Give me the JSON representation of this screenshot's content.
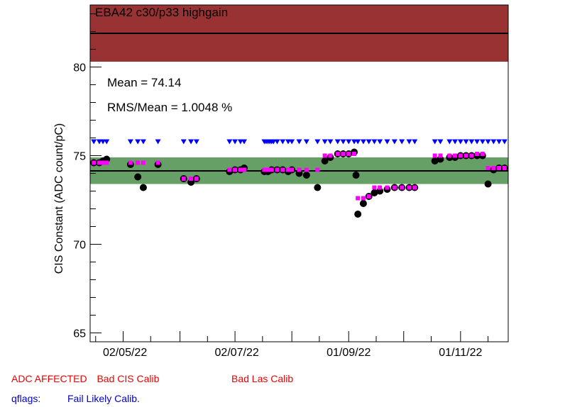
{
  "chart_data": {
    "type": "scatter",
    "title": "EBA42 c30/p33 highgain",
    "ylabel": "CIS Constant (ADC count/pC)",
    "xlabel": "",
    "ylim": [
      64.5,
      83.5
    ],
    "xlim": [
      "2022-04-13",
      "2022-11-27"
    ],
    "ytick_labels": [
      "65",
      "70",
      "75",
      "80"
    ],
    "yticks": [
      65,
      70,
      75,
      80
    ],
    "xtick_labels": [
      "02/05/22",
      "02/07/22",
      "01/09/22",
      "01/11/22"
    ],
    "xticks": [
      "2022-05-02",
      "2022-07-02",
      "2022-09-01",
      "2022-11-01"
    ],
    "stats": {
      "mean_text": "Mean = 74.14",
      "rms_text": "RMS/Mean = 1.0048 %"
    },
    "mean": 74.14,
    "green_band": [
      73.4,
      74.9
    ],
    "red_band": [
      80.3,
      83.5
    ],
    "upper_line": 81.9,
    "grid": false,
    "colors": {
      "red_band": "#993333",
      "green_band": "#66a066",
      "cis_points": "#000000",
      "las_points": "#ff00ff",
      "qflags": "#0000ff"
    },
    "series": [
      {
        "marker": "circle",
        "points": [
          [
            "2022-04-15",
            74.6
          ],
          [
            "2022-04-18",
            74.6
          ],
          [
            "2022-04-20",
            74.7
          ],
          [
            "2022-04-22",
            74.8
          ],
          [
            "2022-05-05",
            74.5
          ],
          [
            "2022-05-09",
            73.8
          ],
          [
            "2022-05-12",
            73.2
          ],
          [
            "2022-05-20",
            74.5
          ],
          [
            "2022-06-03",
            73.7
          ],
          [
            "2022-06-07",
            73.5
          ],
          [
            "2022-06-10",
            73.7
          ],
          [
            "2022-06-28",
            74.1
          ],
          [
            "2022-07-01",
            74.2
          ],
          [
            "2022-07-04",
            74.2
          ],
          [
            "2022-07-06",
            74.3
          ],
          [
            "2022-07-17",
            74.1
          ],
          [
            "2022-07-19",
            74.1
          ],
          [
            "2022-07-21",
            74.2
          ],
          [
            "2022-07-24",
            74.2
          ],
          [
            "2022-07-27",
            74.2
          ],
          [
            "2022-07-30",
            74.1
          ],
          [
            "2022-08-01",
            74.2
          ],
          [
            "2022-08-05",
            74.0
          ],
          [
            "2022-08-09",
            73.9
          ],
          [
            "2022-08-15",
            73.2
          ],
          [
            "2022-08-19",
            74.7
          ],
          [
            "2022-08-22",
            74.9
          ],
          [
            "2022-08-26",
            75.1
          ],
          [
            "2022-08-29",
            75.1
          ],
          [
            "2022-09-01",
            75.1
          ],
          [
            "2022-09-04",
            75.2
          ],
          [
            "2022-09-05",
            73.9
          ],
          [
            "2022-09-06",
            71.7
          ],
          [
            "2022-09-09",
            72.3
          ],
          [
            "2022-09-12",
            72.7
          ],
          [
            "2022-09-15",
            72.9
          ],
          [
            "2022-09-18",
            73.0
          ],
          [
            "2022-09-22",
            73.1
          ],
          [
            "2022-09-26",
            73.2
          ],
          [
            "2022-09-30",
            73.2
          ],
          [
            "2022-10-04",
            73.2
          ],
          [
            "2022-10-07",
            73.2
          ],
          [
            "2022-10-18",
            74.7
          ],
          [
            "2022-10-21",
            74.8
          ],
          [
            "2022-10-26",
            74.9
          ],
          [
            "2022-10-29",
            74.9
          ],
          [
            "2022-11-01",
            75.0
          ],
          [
            "2022-11-04",
            75.0
          ],
          [
            "2022-11-07",
            75.0
          ],
          [
            "2022-11-10",
            75.0
          ],
          [
            "2022-11-13",
            75.0
          ],
          [
            "2022-11-16",
            73.4
          ],
          [
            "2022-11-19",
            74.2
          ],
          [
            "2022-11-22",
            74.3
          ],
          [
            "2022-11-25",
            74.3
          ]
        ]
      },
      {
        "marker": "square",
        "points": [
          [
            "2022-04-15",
            74.6
          ],
          [
            "2022-04-18",
            74.6
          ],
          [
            "2022-04-20",
            74.6
          ],
          [
            "2022-04-22",
            74.6
          ],
          [
            "2022-05-05",
            74.6
          ],
          [
            "2022-05-09",
            74.6
          ],
          [
            "2022-05-12",
            74.6
          ],
          [
            "2022-05-20",
            74.6
          ],
          [
            "2022-06-03",
            73.7
          ],
          [
            "2022-06-07",
            73.7
          ],
          [
            "2022-06-10",
            73.7
          ],
          [
            "2022-06-28",
            74.2
          ],
          [
            "2022-07-01",
            74.2
          ],
          [
            "2022-07-04",
            74.2
          ],
          [
            "2022-07-06",
            74.2
          ],
          [
            "2022-07-17",
            74.2
          ],
          [
            "2022-07-19",
            74.2
          ],
          [
            "2022-07-21",
            74.2
          ],
          [
            "2022-07-24",
            74.2
          ],
          [
            "2022-07-27",
            74.2
          ],
          [
            "2022-07-30",
            74.2
          ],
          [
            "2022-08-01",
            74.2
          ],
          [
            "2022-08-05",
            74.2
          ],
          [
            "2022-08-09",
            74.2
          ],
          [
            "2022-08-15",
            74.2
          ],
          [
            "2022-08-19",
            75.0
          ],
          [
            "2022-08-22",
            75.0
          ],
          [
            "2022-08-26",
            75.1
          ],
          [
            "2022-08-29",
            75.1
          ],
          [
            "2022-09-01",
            75.1
          ],
          [
            "2022-09-04",
            75.1
          ],
          [
            "2022-09-06",
            72.6
          ],
          [
            "2022-09-09",
            72.6
          ],
          [
            "2022-09-12",
            72.7
          ],
          [
            "2022-09-15",
            73.2
          ],
          [
            "2022-09-18",
            73.2
          ],
          [
            "2022-09-22",
            73.2
          ],
          [
            "2022-09-26",
            73.2
          ],
          [
            "2022-09-30",
            73.2
          ],
          [
            "2022-10-04",
            73.2
          ],
          [
            "2022-10-07",
            73.2
          ],
          [
            "2022-10-18",
            75.0
          ],
          [
            "2022-10-21",
            75.0
          ],
          [
            "2022-10-26",
            75.0
          ],
          [
            "2022-10-29",
            75.0
          ],
          [
            "2022-11-01",
            75.0
          ],
          [
            "2022-11-04",
            75.0
          ],
          [
            "2022-11-07",
            75.0
          ],
          [
            "2022-11-10",
            75.1
          ],
          [
            "2022-11-13",
            75.1
          ],
          [
            "2022-11-16",
            74.3
          ],
          [
            "2022-11-19",
            74.3
          ],
          [
            "2022-11-22",
            74.3
          ],
          [
            "2022-11-25",
            74.3
          ]
        ]
      },
      {
        "marker": "triangle-down",
        "y": 75.8,
        "x": [
          "2022-04-15",
          "2022-04-18",
          "2022-04-20",
          "2022-04-22",
          "2022-05-05",
          "2022-05-09",
          "2022-05-12",
          "2022-05-20",
          "2022-06-03",
          "2022-06-07",
          "2022-06-10",
          "2022-06-28",
          "2022-07-01",
          "2022-07-04",
          "2022-07-06",
          "2022-07-17",
          "2022-07-18",
          "2022-07-19",
          "2022-07-20",
          "2022-07-21",
          "2022-07-22",
          "2022-07-24",
          "2022-07-27",
          "2022-07-30",
          "2022-08-01",
          "2022-08-05",
          "2022-08-09",
          "2022-08-15",
          "2022-08-19",
          "2022-08-22",
          "2022-08-26",
          "2022-08-29",
          "2022-09-01",
          "2022-09-04",
          "2022-09-06",
          "2022-09-09",
          "2022-09-12",
          "2022-09-15",
          "2022-09-18",
          "2022-09-22",
          "2022-09-26",
          "2022-09-30",
          "2022-10-04",
          "2022-10-07",
          "2022-10-18",
          "2022-10-21",
          "2022-10-26",
          "2022-10-29",
          "2022-11-01",
          "2022-11-04",
          "2022-11-07",
          "2022-11-10",
          "2022-11-13",
          "2022-11-16",
          "2022-11-19",
          "2022-11-22",
          "2022-11-25"
        ]
      }
    ]
  },
  "legend": {
    "row1": [
      "ADC AFFECTED",
      "Bad CIS Calib",
      "Bad Las Calib"
    ],
    "qflags_label": "qflags:",
    "qflags_value": "Fail Likely Calib."
  }
}
